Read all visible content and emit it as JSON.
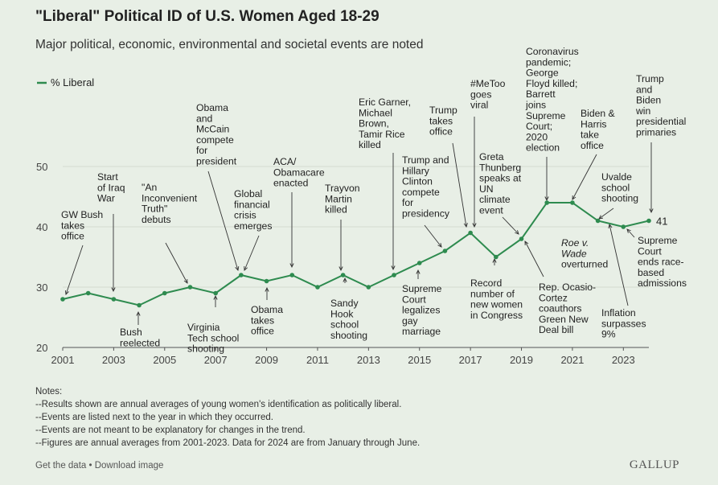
{
  "title": "\"Liberal\" Political ID of U.S. Women Aged 18-29",
  "subtitle": "Major political, economic, environmental and societal events are noted",
  "colors": {
    "line": "#2e8b4f",
    "grid": "#d3dbd0",
    "text": "#222222",
    "background": "#e8efe6"
  },
  "chart_data": {
    "type": "line",
    "title": "\"Liberal\" Political ID of U.S. Women Aged 18-29",
    "subtitle": "Major political, economic, environmental and societal events are noted",
    "xlabel": "",
    "ylabel": "",
    "xlim": [
      2001,
      2024
    ],
    "ylim": [
      20,
      50
    ],
    "x_ticks": [
      "2001",
      "2003",
      "2005",
      "2007",
      "2009",
      "2011",
      "2013",
      "2015",
      "2017",
      "2019",
      "2021",
      "2023"
    ],
    "y_ticks": [
      "20",
      "30",
      "40",
      "50"
    ],
    "grid": "horizontal",
    "legend": "top-left",
    "series": [
      {
        "name": "% Liberal",
        "x": [
          2001,
          2002,
          2003,
          2004,
          2005,
          2006,
          2007,
          2008,
          2009,
          2010,
          2011,
          2012,
          2013,
          2014,
          2015,
          2016,
          2017,
          2018,
          2019,
          2020,
          2021,
          2022,
          2023,
          2024
        ],
        "values": [
          28,
          29,
          28,
          27,
          29,
          30,
          29,
          32,
          31,
          32,
          30,
          32,
          30,
          32,
          34,
          36,
          39,
          35,
          38,
          44,
          44,
          41,
          40,
          41
        ]
      }
    ],
    "end_label": "41",
    "annotations": [
      {
        "year": 2001,
        "above": true,
        "lines": [
          "GW Bush",
          "takes",
          "office"
        ]
      },
      {
        "year": 2003,
        "above": true,
        "lines": [
          "Start",
          "of Iraq",
          "War"
        ]
      },
      {
        "year": 2004,
        "above": false,
        "lines": [
          "Bush",
          "reelected"
        ]
      },
      {
        "year": 2006,
        "above": true,
        "lines": [
          "\"An",
          "Inconvenient",
          "Truth\"",
          "debuts"
        ]
      },
      {
        "year": 2007,
        "above": false,
        "lines": [
          "Virginia",
          "Tech school",
          "shooting"
        ]
      },
      {
        "year": 2008,
        "above": true,
        "lines": [
          "Obama",
          "and",
          "McCain",
          "compete",
          "for",
          "president"
        ]
      },
      {
        "year": 2008,
        "above": true,
        "lines": [
          "Global",
          "financial",
          "crisis",
          "emerges"
        ]
      },
      {
        "year": 2009,
        "above": false,
        "lines": [
          "Obama",
          "takes",
          "office"
        ]
      },
      {
        "year": 2010,
        "above": true,
        "lines": [
          "ACA/",
          "Obamacare",
          "enacted"
        ]
      },
      {
        "year": 2012,
        "above": true,
        "lines": [
          "Trayvon",
          "Martin",
          "killed"
        ]
      },
      {
        "year": 2012,
        "above": false,
        "lines": [
          "Sandy",
          "Hook",
          "school",
          "shooting"
        ]
      },
      {
        "year": 2014,
        "above": true,
        "lines": [
          "Eric Garner,",
          "Michael",
          "Brown,",
          "Tamir Rice",
          "killed"
        ]
      },
      {
        "year": 2015,
        "above": false,
        "lines": [
          "Supreme",
          "Court",
          "legalizes",
          "gay",
          "marriage"
        ]
      },
      {
        "year": 2016,
        "above": true,
        "lines": [
          "Trump and",
          "Hillary",
          "Clinton",
          "compete",
          "for",
          "presidency"
        ]
      },
      {
        "year": 2017,
        "above": true,
        "lines": [
          "Trump",
          "takes",
          "office"
        ]
      },
      {
        "year": 2017,
        "above": true,
        "lines": [
          "#MeToo",
          "goes",
          "viral"
        ]
      },
      {
        "year": 2018,
        "above": false,
        "lines": [
          "Record",
          "number of",
          "new women",
          "in Congress"
        ]
      },
      {
        "year": 2019,
        "above": true,
        "lines": [
          "Greta",
          "Thunberg",
          "speaks at",
          "UN",
          "climate",
          "event"
        ]
      },
      {
        "year": 2019,
        "above": false,
        "lines": [
          "Rep. Ocasio-",
          "Cortez",
          "coauthors",
          "Green New",
          "Deal bill"
        ]
      },
      {
        "year": 2020,
        "above": true,
        "lines": [
          "Coronavirus",
          "pandemic;",
          "George",
          "Floyd killed;",
          "Barrett",
          "joins",
          "Supreme",
          "Court;",
          "2020",
          "election"
        ]
      },
      {
        "year": 2021,
        "above": true,
        "lines": [
          "Biden &",
          "Harris",
          "take",
          "office"
        ]
      },
      {
        "year": 2022,
        "above": false,
        "lines": [
          "Roe v.",
          "Wade",
          "overturned"
        ]
      },
      {
        "year": 2022,
        "above": true,
        "lines": [
          "Uvalde",
          "school",
          "shooting"
        ]
      },
      {
        "year": 2022,
        "above": false,
        "lines": [
          "Inflation",
          "surpasses",
          "9%"
        ]
      },
      {
        "year": 2023,
        "above": false,
        "lines": [
          "Supreme",
          "Court",
          "ends race-",
          "based",
          "admissions"
        ]
      },
      {
        "year": 2024,
        "above": true,
        "lines": [
          "Trump",
          "and",
          "Biden",
          "win",
          "presidential",
          "primaries"
        ]
      }
    ]
  },
  "notes": [
    "Notes:",
    "--Results shown are annual averages of young women's identification as politically liberal.",
    "--Events are listed next to the year in which they occurred.",
    "--Events are not meant to be explanatory for changes in the trend.",
    "--Figures are annual averages from 2001-2023. Data for 2024 are from January through June."
  ],
  "footer": {
    "get_data": "Get the data",
    "separator": " • ",
    "download": "Download image"
  },
  "brand": "GALLUP"
}
